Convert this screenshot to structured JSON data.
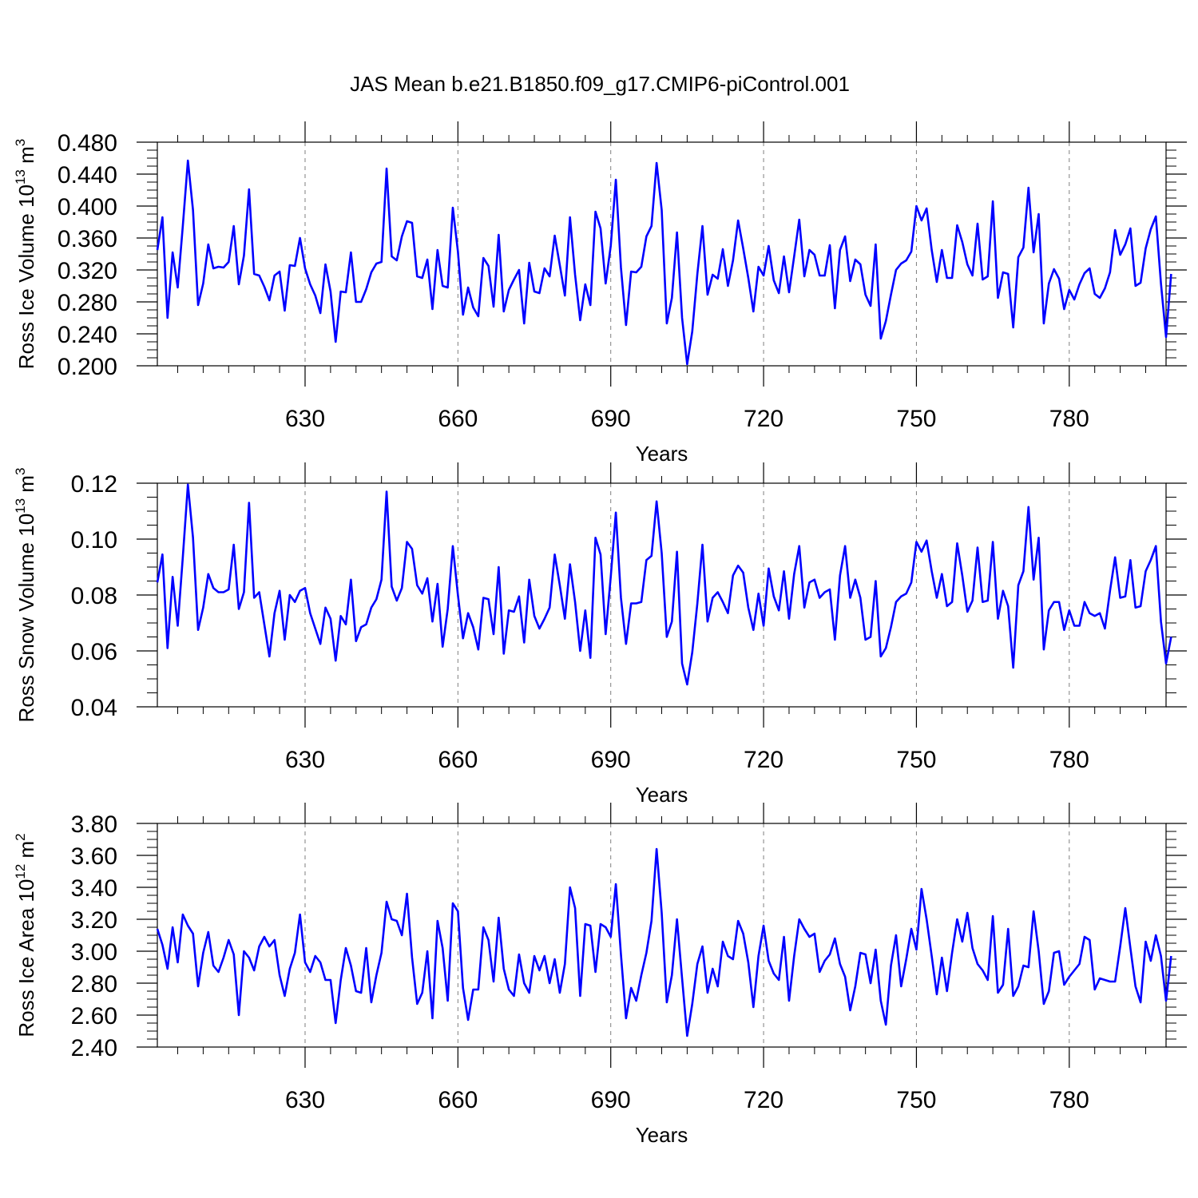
{
  "title": "JAS Mean b.e21.B1850.f09_g17.CMIP6-piControl.001",
  "chart_data": [
    {
      "type": "line",
      "ylabel": "Ross Ice Volume 10",
      "ylabel_sup": "13",
      "ylabel_unit": " m",
      "ylabel_unit_sup": "3",
      "xlabel": "Years",
      "ylim": [
        0.2,
        0.48
      ],
      "yticks": [
        "0.200",
        "0.240",
        "0.280",
        "0.320",
        "0.360",
        "0.400",
        "0.440",
        "0.480"
      ],
      "xticks": [
        "630",
        "660",
        "690",
        "720",
        "750",
        "780"
      ],
      "x_start": 601,
      "values": [
        0.345,
        0.386,
        0.26,
        0.342,
        0.298,
        0.375,
        0.457,
        0.395,
        0.276,
        0.303,
        0.352,
        0.322,
        0.324,
        0.323,
        0.33,
        0.375,
        0.302,
        0.338,
        0.421,
        0.315,
        0.313,
        0.299,
        0.282,
        0.313,
        0.318,
        0.269,
        0.326,
        0.325,
        0.36,
        0.322,
        0.302,
        0.288,
        0.266,
        0.327,
        0.293,
        0.23,
        0.293,
        0.292,
        0.342,
        0.28,
        0.28,
        0.296,
        0.317,
        0.328,
        0.33,
        0.447,
        0.337,
        0.332,
        0.362,
        0.381,
        0.379,
        0.312,
        0.31,
        0.333,
        0.271,
        0.345,
        0.3,
        0.298,
        0.398,
        0.343,
        0.264,
        0.298,
        0.273,
        0.262,
        0.335,
        0.325,
        0.274,
        0.364,
        0.268,
        0.295,
        0.308,
        0.32,
        0.253,
        0.329,
        0.293,
        0.291,
        0.322,
        0.312,
        0.363,
        0.326,
        0.288,
        0.386,
        0.314,
        0.257,
        0.302,
        0.276,
        0.393,
        0.372,
        0.303,
        0.35,
        0.433,
        0.323,
        0.251,
        0.318,
        0.317,
        0.324,
        0.362,
        0.375,
        0.454,
        0.395,
        0.253,
        0.285,
        0.367,
        0.26,
        0.202,
        0.243,
        0.315,
        0.375,
        0.289,
        0.314,
        0.309,
        0.346,
        0.3,
        0.332,
        0.382,
        0.347,
        0.31,
        0.268,
        0.324,
        0.313,
        0.35,
        0.307,
        0.291,
        0.337,
        0.292,
        0.337,
        0.383,
        0.312,
        0.345,
        0.339,
        0.313,
        0.313,
        0.351,
        0.272,
        0.345,
        0.362,
        0.306,
        0.333,
        0.327,
        0.289,
        0.275,
        0.352,
        0.234,
        0.256,
        0.289,
        0.32,
        0.328,
        0.332,
        0.343,
        0.4,
        0.382,
        0.397,
        0.345,
        0.305,
        0.345,
        0.31,
        0.31,
        0.376,
        0.355,
        0.327,
        0.313,
        0.378,
        0.308,
        0.312,
        0.406,
        0.285,
        0.317,
        0.315,
        0.248,
        0.336,
        0.348,
        0.423,
        0.342,
        0.39,
        0.253,
        0.303,
        0.321,
        0.309,
        0.271,
        0.295,
        0.283,
        0.302,
        0.316,
        0.322,
        0.29,
        0.285,
        0.297,
        0.317,
        0.37,
        0.339,
        0.352,
        0.372,
        0.3,
        0.304,
        0.347,
        0.371,
        0.387,
        0.303,
        0.236,
        0.315
      ]
    },
    {
      "type": "line",
      "ylabel": "Ross Snow Volume 10",
      "ylabel_sup": "13",
      "ylabel_unit": " m",
      "ylabel_unit_sup": "3",
      "xlabel": "Years",
      "ylim": [
        0.04,
        0.12
      ],
      "yticks": [
        "0.04",
        "0.06",
        "0.08",
        "0.10",
        "0.12"
      ],
      "xticks": [
        "630",
        "660",
        "690",
        "720",
        "750",
        "780"
      ],
      "x_start": 601,
      "values": [
        0.0845,
        0.0945,
        0.061,
        0.0865,
        0.069,
        0.0935,
        0.1195,
        0.1005,
        0.0675,
        0.0755,
        0.0875,
        0.0825,
        0.081,
        0.081,
        0.082,
        0.098,
        0.075,
        0.081,
        0.113,
        0.079,
        0.081,
        0.0695,
        0.058,
        0.0735,
        0.0815,
        0.064,
        0.08,
        0.0775,
        0.0815,
        0.0825,
        0.0735,
        0.068,
        0.0625,
        0.0755,
        0.0715,
        0.0565,
        0.0725,
        0.0695,
        0.0855,
        0.0635,
        0.0685,
        0.0695,
        0.0755,
        0.0785,
        0.0855,
        0.117,
        0.083,
        0.078,
        0.0825,
        0.099,
        0.0965,
        0.0835,
        0.0805,
        0.086,
        0.0705,
        0.084,
        0.0615,
        0.075,
        0.0975,
        0.08,
        0.0645,
        0.0735,
        0.0685,
        0.0605,
        0.079,
        0.0785,
        0.066,
        0.09,
        0.059,
        0.0745,
        0.074,
        0.0795,
        0.063,
        0.0855,
        0.0725,
        0.068,
        0.0715,
        0.0755,
        0.0945,
        0.0835,
        0.0715,
        0.091,
        0.0775,
        0.06,
        0.0745,
        0.0575,
        0.1005,
        0.0945,
        0.066,
        0.0865,
        0.1095,
        0.079,
        0.0625,
        0.077,
        0.077,
        0.0775,
        0.0925,
        0.094,
        0.1135,
        0.095,
        0.065,
        0.0705,
        0.0955,
        0.0555,
        0.048,
        0.0595,
        0.077,
        0.098,
        0.0705,
        0.079,
        0.081,
        0.0775,
        0.0735,
        0.087,
        0.0905,
        0.088,
        0.0755,
        0.0675,
        0.0805,
        0.069,
        0.0895,
        0.0795,
        0.0745,
        0.0885,
        0.0715,
        0.0875,
        0.0975,
        0.0755,
        0.0845,
        0.0855,
        0.079,
        0.081,
        0.082,
        0.064,
        0.087,
        0.0975,
        0.079,
        0.0855,
        0.079,
        0.064,
        0.065,
        0.085,
        0.058,
        0.061,
        0.0685,
        0.0775,
        0.0795,
        0.0805,
        0.0845,
        0.099,
        0.0955,
        0.0995,
        0.0885,
        0.079,
        0.0875,
        0.076,
        0.0775,
        0.0985,
        0.087,
        0.074,
        0.078,
        0.097,
        0.0775,
        0.078,
        0.099,
        0.0715,
        0.0815,
        0.076,
        0.054,
        0.0835,
        0.0885,
        0.1115,
        0.0855,
        0.1005,
        0.0605,
        0.0745,
        0.0775,
        0.0775,
        0.0675,
        0.0745,
        0.069,
        0.069,
        0.0775,
        0.0735,
        0.0725,
        0.0735,
        0.068,
        0.0815,
        0.0935,
        0.079,
        0.0795,
        0.0925,
        0.0755,
        0.076,
        0.0885,
        0.0925,
        0.0975,
        0.0705,
        0.0555,
        0.065
      ]
    },
    {
      "type": "line",
      "ylabel": "Ross Ice Area 10",
      "ylabel_sup": "12",
      "ylabel_unit": " m",
      "ylabel_unit_sup": "2",
      "xlabel": "Years",
      "ylim": [
        2.4,
        3.8
      ],
      "yticks": [
        "2.40",
        "2.60",
        "2.80",
        "3.00",
        "3.20",
        "3.40",
        "3.60",
        "3.80"
      ],
      "xticks": [
        "630",
        "660",
        "690",
        "720",
        "750",
        "780"
      ],
      "x_start": 601,
      "values": [
        3.14,
        3.04,
        2.89,
        3.15,
        2.93,
        3.23,
        3.16,
        3.11,
        2.78,
        2.99,
        3.12,
        2.91,
        2.87,
        2.96,
        3.07,
        2.98,
        2.6,
        3.0,
        2.96,
        2.88,
        3.03,
        3.09,
        3.03,
        3.07,
        2.85,
        2.72,
        2.89,
        2.99,
        3.23,
        2.93,
        2.87,
        2.97,
        2.93,
        2.82,
        2.82,
        2.55,
        2.82,
        3.02,
        2.91,
        2.75,
        2.74,
        3.02,
        2.68,
        2.85,
        2.99,
        3.31,
        3.2,
        3.19,
        3.1,
        3.36,
        2.96,
        2.67,
        2.74,
        3.0,
        2.58,
        3.19,
        3.02,
        2.69,
        3.3,
        3.25,
        2.77,
        2.57,
        2.76,
        2.76,
        3.15,
        3.07,
        2.81,
        3.21,
        2.89,
        2.76,
        2.72,
        2.98,
        2.8,
        2.74,
        2.97,
        2.88,
        2.97,
        2.8,
        2.95,
        2.74,
        2.92,
        3.4,
        3.27,
        2.72,
        3.17,
        3.16,
        2.87,
        3.17,
        3.15,
        3.09,
        3.42,
        2.98,
        2.58,
        2.77,
        2.69,
        2.85,
        2.99,
        3.19,
        3.64,
        3.24,
        2.68,
        2.85,
        3.2,
        2.83,
        2.47,
        2.67,
        2.92,
        3.03,
        2.74,
        2.89,
        2.78,
        3.06,
        2.97,
        2.95,
        3.19,
        3.11,
        2.93,
        2.65,
        2.97,
        3.16,
        2.94,
        2.86,
        2.82,
        3.09,
        2.69,
        2.97,
        3.2,
        3.14,
        3.09,
        3.11,
        2.87,
        2.94,
        2.98,
        3.08,
        2.92,
        2.84,
        2.63,
        2.78,
        2.99,
        2.98,
        2.8,
        3.01,
        2.69,
        2.54,
        2.91,
        3.1,
        2.78,
        2.95,
        3.14,
        3.01,
        3.39,
        3.2,
        2.97,
        2.73,
        2.96,
        2.75,
        2.99,
        3.2,
        3.06,
        3.24,
        3.02,
        2.92,
        2.88,
        2.82,
        3.22,
        2.74,
        2.79,
        3.14,
        2.72,
        2.78,
        2.91,
        2.9,
        3.25,
        3.0,
        2.67,
        2.75,
        2.99,
        3.0,
        2.79,
        2.84,
        2.88,
        2.92,
        3.09,
        3.07,
        2.76,
        2.83,
        2.82,
        2.81,
        2.81,
        3.03,
        3.27,
        3.02,
        2.78,
        2.68,
        3.06,
        2.94,
        3.1,
        2.97,
        2.69,
        2.97
      ]
    }
  ],
  "colors": {
    "line": "#0000ff",
    "axis": "#000000",
    "grid": "#7f7f7f"
  }
}
